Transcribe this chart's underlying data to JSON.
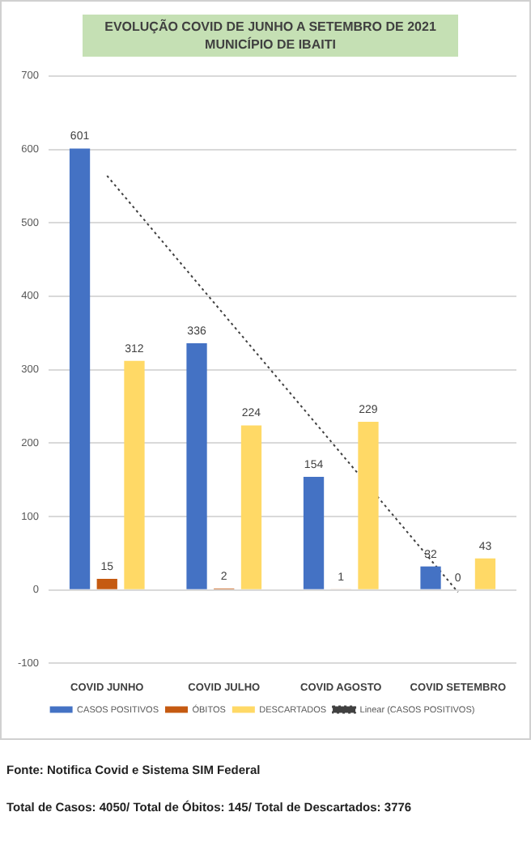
{
  "chart_data": {
    "type": "bar",
    "title": "EVOLUÇÃO COVID DE JUNHO A SETEMBRO DE 2021\nMUNICÍPIO DE IBAITI",
    "categories": [
      "COVID JUNHO",
      "COVID JULHO",
      "COVID AGOSTO",
      "COVID SETEMBRO"
    ],
    "series": [
      {
        "name": "CASOS POSITIVOS",
        "color": "#4472c4",
        "values": [
          601,
          336,
          154,
          32
        ],
        "value_labels": [
          "601",
          "336",
          "154",
          "32"
        ]
      },
      {
        "name": "ÓBITOS",
        "color": "#c55a11",
        "values": [
          15,
          2,
          1,
          0
        ],
        "value_labels": [
          "15",
          "2",
          "1",
          "0"
        ]
      },
      {
        "name": "DESCARTADOS",
        "color": "#ffd966",
        "values": [
          312,
          224,
          229,
          43
        ],
        "value_labels": [
          "312",
          "224",
          "229",
          "43"
        ]
      },
      {
        "name": "Linear (CASOS POSITIVOS)",
        "type": "line",
        "line_style": "dotted",
        "color": "#404040",
        "x": [
          "COVID JUNHO",
          "COVID SETEMBRO"
        ],
        "values": [
          564,
          -3
        ]
      }
    ],
    "ylim": [
      -100,
      700
    ],
    "yticks": [
      -100,
      0,
      100,
      200,
      300,
      400,
      500,
      600,
      700
    ],
    "grid": "y",
    "legend": "bottom",
    "marker": "none",
    "annotations": [
      "Fonte: Notifica Covid e Sistema SIM Federal",
      "Total de Casos: 4050/ Total de Óbitos: 145/ Total de Descartados: 3776"
    ]
  }
}
